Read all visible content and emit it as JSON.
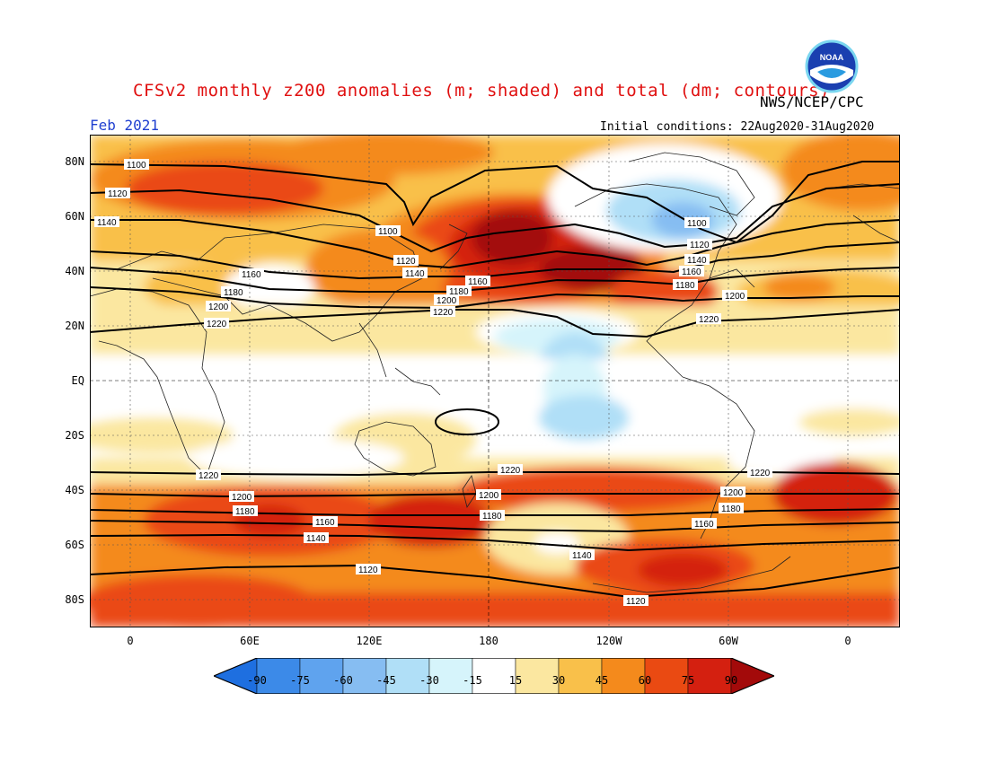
{
  "title": "CFSv2 monthly z200 anomalies (m; shaded) and total (dm; contours)",
  "agency": "NWS/NCEP/CPC",
  "logo_text": "NOAA",
  "valid_month": "Feb 2021",
  "initial_conditions": "Initial conditions: 22Aug2020-31Aug2020",
  "lat_labels": [
    "80N",
    "60N",
    "40N",
    "20N",
    "EQ",
    "20S",
    "40S",
    "60S",
    "80S"
  ],
  "lon_labels": [
    "0",
    "60E",
    "120E",
    "180",
    "120W",
    "60W",
    "0"
  ],
  "colorbar": {
    "labels": [
      "-90",
      "-75",
      "-60",
      "-45",
      "-30",
      "-15",
      "15",
      "30",
      "45",
      "60",
      "75",
      "90"
    ],
    "colors": [
      "#1e6fe0",
      "#3c8ae8",
      "#5fa3ee",
      "#86bdf2",
      "#b0dff7",
      "#d6f4fb",
      "#ffffff",
      "#fbe7a0",
      "#f9c04a",
      "#f48a1c",
      "#ea4a12",
      "#d42010",
      "#a30a0a"
    ]
  },
  "contour_labels": {
    "north": [
      "1100",
      "1120",
      "1140",
      "1160",
      "1180",
      "1200",
      "1220"
    ],
    "south": [
      "1220",
      "1200",
      "1180",
      "1160",
      "1140",
      "1120"
    ]
  }
}
